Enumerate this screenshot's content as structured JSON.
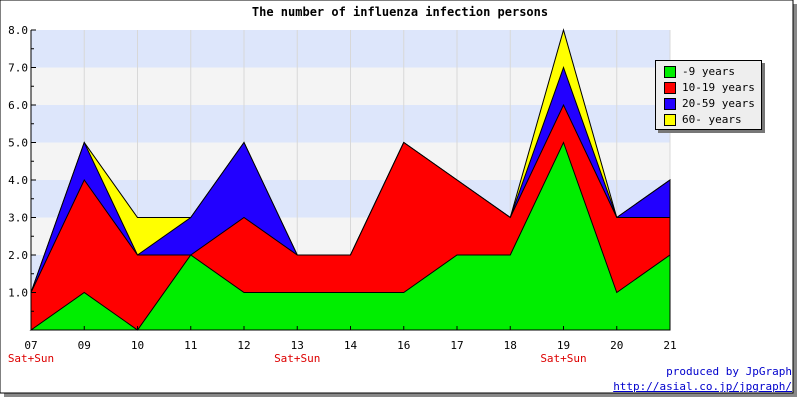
{
  "chart_data": {
    "type": "area",
    "stacked": true,
    "title": "The number of influenza infection persons",
    "categories": [
      "07",
      "09",
      "10",
      "11",
      "12",
      "13",
      "14",
      "16",
      "17",
      "18",
      "19",
      "20",
      "21"
    ],
    "weekend_labels": [
      "Sat+Sun",
      "",
      "",
      "",
      "",
      "Sat+Sun",
      "",
      "",
      "",
      "",
      "Sat+Sun",
      "",
      ""
    ],
    "ylim": [
      0,
      8
    ],
    "yticks": [
      "1.0",
      "2.0",
      "3.0",
      "4.0",
      "5.0",
      "6.0",
      "7.0",
      "8.0"
    ],
    "grid": "horizontal bands",
    "legend_position": "right",
    "series": [
      {
        "name": "-9 years",
        "color": "#00ee00",
        "values": [
          0,
          1,
          0,
          2,
          1,
          1,
          1,
          1,
          2,
          2,
          5,
          1,
          2
        ]
      },
      {
        "name": "10-19 years",
        "color": "#ff0000",
        "values": [
          1,
          3,
          2,
          0,
          2,
          1,
          1,
          4,
          2,
          1,
          1,
          2,
          1
        ]
      },
      {
        "name": "20-59 years",
        "color": "#2200ff",
        "values": [
          0,
          1,
          0,
          1,
          2,
          0,
          0,
          0,
          0,
          0,
          1,
          0,
          1
        ]
      },
      {
        "name": "60- years",
        "color": "#ffff00",
        "values": [
          0,
          0,
          1,
          0,
          0,
          0,
          0,
          0,
          0,
          0,
          1,
          0,
          0
        ]
      }
    ]
  },
  "credits": {
    "line1": "produced by JpGraph",
    "line2": "http://asial.co.jp/jpgraph/"
  },
  "colors": {
    "band_blue": "#dde6fb",
    "band_gray": "#f4f4f4",
    "weekend_label": "#dd0000"
  }
}
